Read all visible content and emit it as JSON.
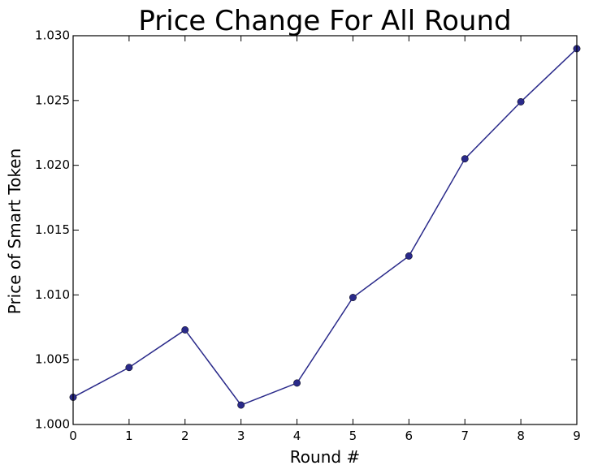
{
  "chart_data": {
    "type": "line",
    "title": "Price Change For All Round",
    "xlabel": "Round #",
    "ylabel": "Price of Smart Token",
    "x": [
      0,
      1,
      2,
      3,
      4,
      5,
      6,
      7,
      8,
      9
    ],
    "series": [
      {
        "values": [
          1.0021,
          1.0044,
          1.0073,
          1.0015,
          1.0032,
          1.0098,
          1.013,
          1.0205,
          1.0249,
          1.029
        ],
        "color": "#2a2a8a",
        "marker": "circle"
      }
    ],
    "xlim": [
      0,
      9
    ],
    "ylim": [
      1.0,
      1.03
    ],
    "xticks": [
      "0",
      "1",
      "2",
      "3",
      "4",
      "5",
      "6",
      "7",
      "8",
      "9"
    ],
    "yticks": [
      "1.000",
      "1.005",
      "1.010",
      "1.015",
      "1.020",
      "1.025",
      "1.030"
    ],
    "grid": false,
    "legend": "none"
  }
}
